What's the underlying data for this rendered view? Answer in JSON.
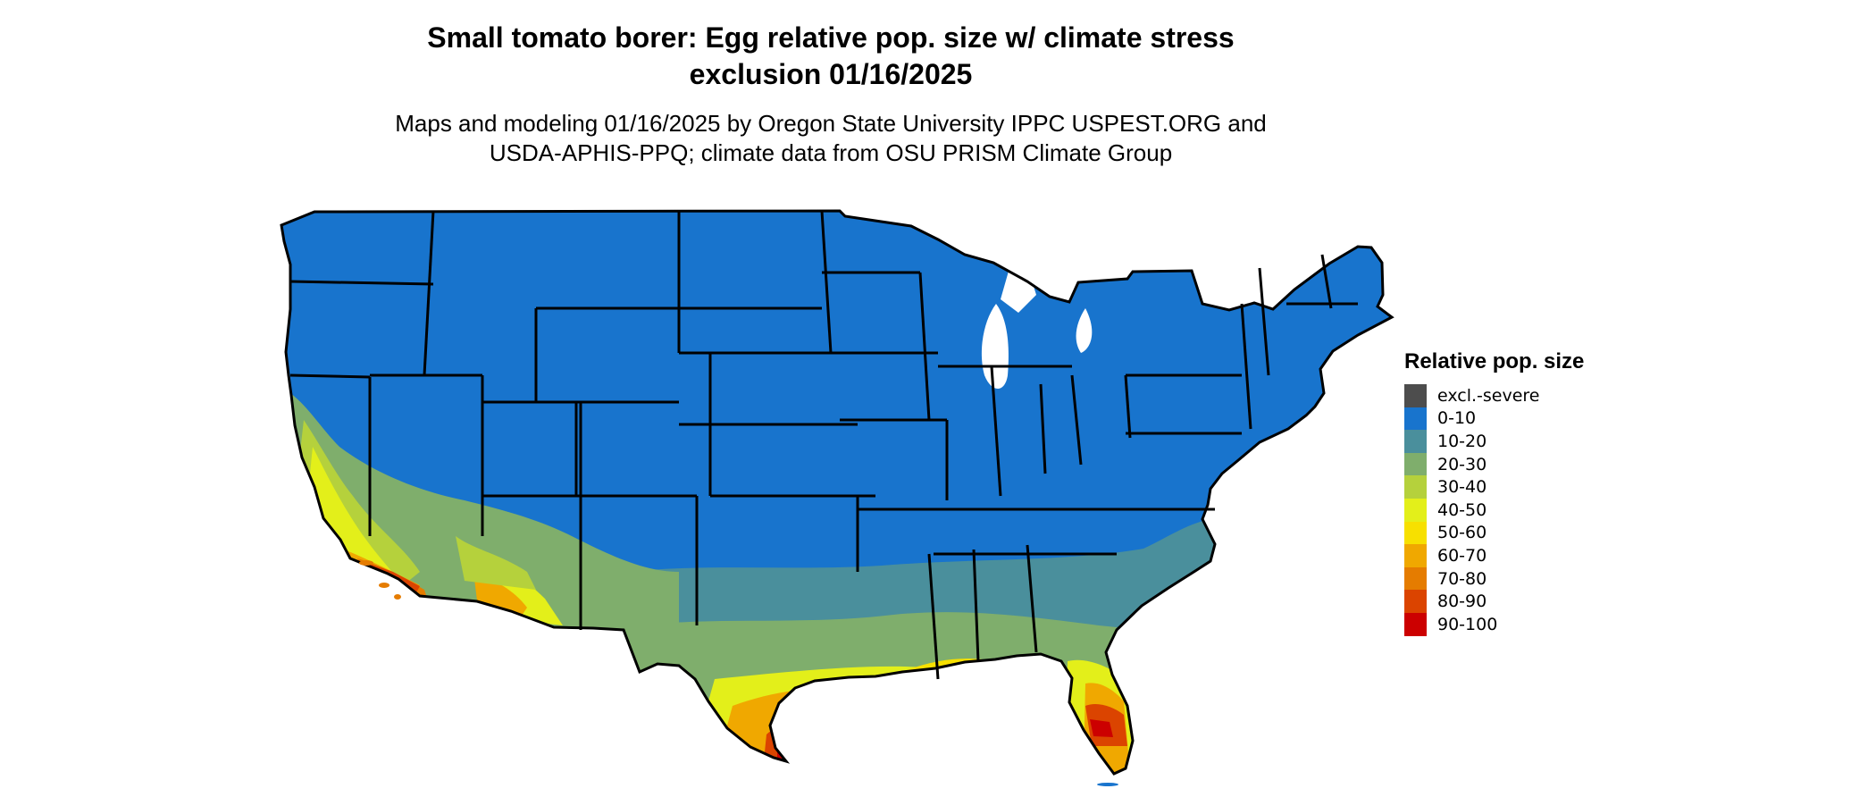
{
  "map": {
    "title_line1": "Small tomato borer: Egg relative pop. size w/ climate stress",
    "title_line2": "exclusion 01/16/2025",
    "subtitle_line1": "Maps and modeling 01/16/2025 by Oregon State University IPPC USPEST.ORG and",
    "subtitle_line2": "USDA-APHIS-PPQ; climate data from OSU PRISM Climate Group",
    "region": "Contiguous United States",
    "base_class": "0-10"
  },
  "legend": {
    "title": "Relative pop. size",
    "items": [
      {
        "label": "excl.-severe",
        "color": "#4d4d4d"
      },
      {
        "label": "0-10",
        "color": "#1874cd"
      },
      {
        "label": "10-20",
        "color": "#4a8f9c"
      },
      {
        "label": "20-30",
        "color": "#7fae6c"
      },
      {
        "label": "30-40",
        "color": "#b5d13c"
      },
      {
        "label": "40-50",
        "color": "#e3ef1a"
      },
      {
        "label": "50-60",
        "color": "#f7e000"
      },
      {
        "label": "60-70",
        "color": "#f0a800"
      },
      {
        "label": "70-80",
        "color": "#e57c00"
      },
      {
        "label": "80-90",
        "color": "#db4400"
      },
      {
        "label": "90-100",
        "color": "#cc0000"
      }
    ]
  }
}
